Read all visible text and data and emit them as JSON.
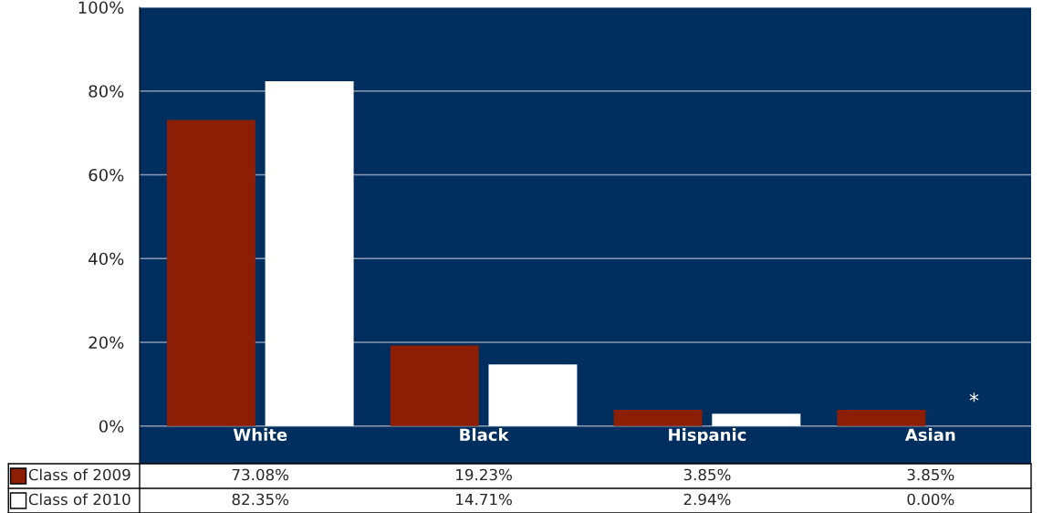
{
  "chart_data": {
    "type": "bar",
    "categories": [
      "White",
      "Black",
      "Hispanic",
      "Asian"
    ],
    "series": [
      {
        "name": "Class of 2009",
        "color": "#8b1e05",
        "values": [
          73.08,
          19.23,
          3.85,
          3.85
        ],
        "value_labels": [
          "73.08%",
          "19.23%",
          "3.85%",
          "3.85%"
        ]
      },
      {
        "name": "Class of 2010",
        "color": "#ffffff",
        "values": [
          82.35,
          14.71,
          2.94,
          0.0
        ],
        "value_labels": [
          "82.35%",
          "14.71%",
          "2.94%",
          "0.00%"
        ]
      }
    ],
    "ylim": [
      -9,
      100
    ],
    "yticks": [
      {
        "value": 0,
        "label": "0%"
      },
      {
        "value": 20,
        "label": "20%"
      },
      {
        "value": 40,
        "label": "40%"
      },
      {
        "value": 60,
        "label": "60%"
      },
      {
        "value": 80,
        "label": "80%"
      },
      {
        "value": 100,
        "label": "100%"
      }
    ],
    "grid": "y",
    "legend": "bottom",
    "annotations": [
      "*"
    ]
  }
}
